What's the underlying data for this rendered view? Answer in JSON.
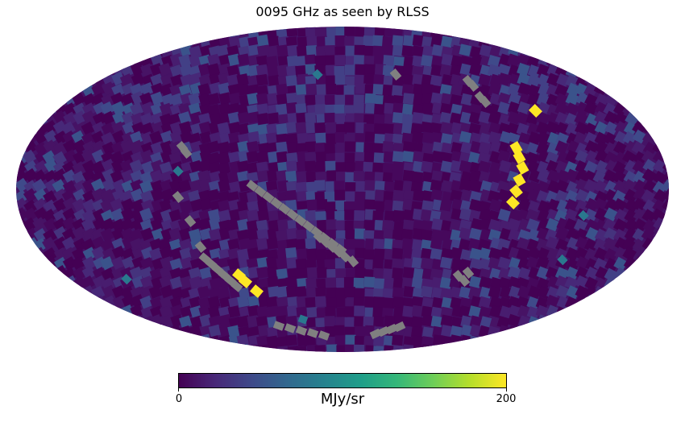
{
  "title": "0095 GHz as seen by RLSS",
  "projection": "mollweide",
  "colormap": "viridis",
  "bad_value_color": "#808080",
  "colorbar": {
    "min_label": "0",
    "max_label": "200",
    "unit": "MJy/sr",
    "range": [
      0,
      200
    ]
  }
}
